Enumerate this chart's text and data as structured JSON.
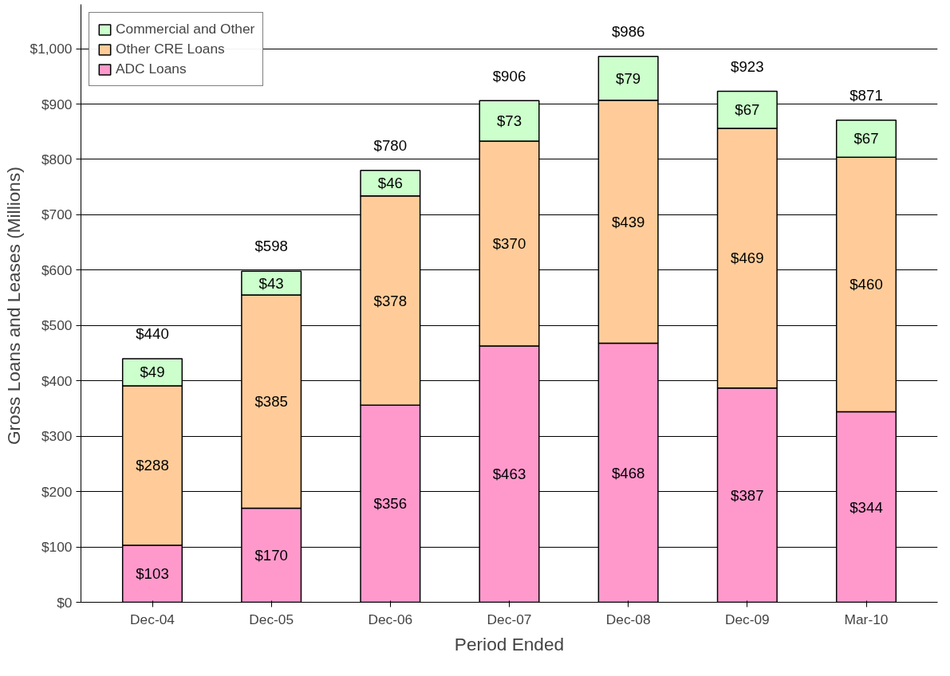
{
  "chart_data": {
    "type": "bar",
    "stacked": true,
    "xlabel": "Period Ended",
    "ylabel": "Gross Loans and Leases  (Millions)",
    "categories": [
      "Dec-04",
      "Dec-05",
      "Dec-06",
      "Dec-07",
      "Dec-08",
      "Dec-09",
      "Mar-10"
    ],
    "series": [
      {
        "name": "ADC Loans",
        "color": "#ff99cc",
        "values": [
          103,
          170,
          356,
          463,
          468,
          387,
          344
        ],
        "value_labels": [
          "$103",
          "$170",
          "$356",
          "$463",
          "$468",
          "$387",
          "$344"
        ]
      },
      {
        "name": "Other CRE Loans",
        "color": "#ffcc99",
        "values": [
          288,
          385,
          378,
          370,
          439,
          469,
          460
        ],
        "value_labels": [
          "$288",
          "$385",
          "$378",
          "$370",
          "$439",
          "$469",
          "$460"
        ]
      },
      {
        "name": "Commercial and Other",
        "color": "#ccffcc",
        "values": [
          49,
          43,
          46,
          73,
          79,
          67,
          67
        ],
        "value_labels": [
          "$49",
          "$43",
          "$46",
          "$73",
          "$79",
          "$67",
          "$67"
        ]
      }
    ],
    "totals": [
      "$440",
      "$598",
      "$780",
      "$906",
      "$986",
      "$923",
      "$871"
    ],
    "ylim": [
      0,
      1000
    ],
    "yticks": [
      {
        "value": 0,
        "label": "$0"
      },
      {
        "value": 100,
        "label": "$100"
      },
      {
        "value": 200,
        "label": "$200"
      },
      {
        "value": 300,
        "label": "$300"
      },
      {
        "value": 400,
        "label": "$400"
      },
      {
        "value": 500,
        "label": "$500"
      },
      {
        "value": 600,
        "label": "$600"
      },
      {
        "value": 700,
        "label": "$700"
      },
      {
        "value": 800,
        "label": "$800"
      },
      {
        "value": 900,
        "label": "$900"
      },
      {
        "value": 1000,
        "label": "$1,000"
      }
    ],
    "grid": "y",
    "legend": "top left"
  }
}
